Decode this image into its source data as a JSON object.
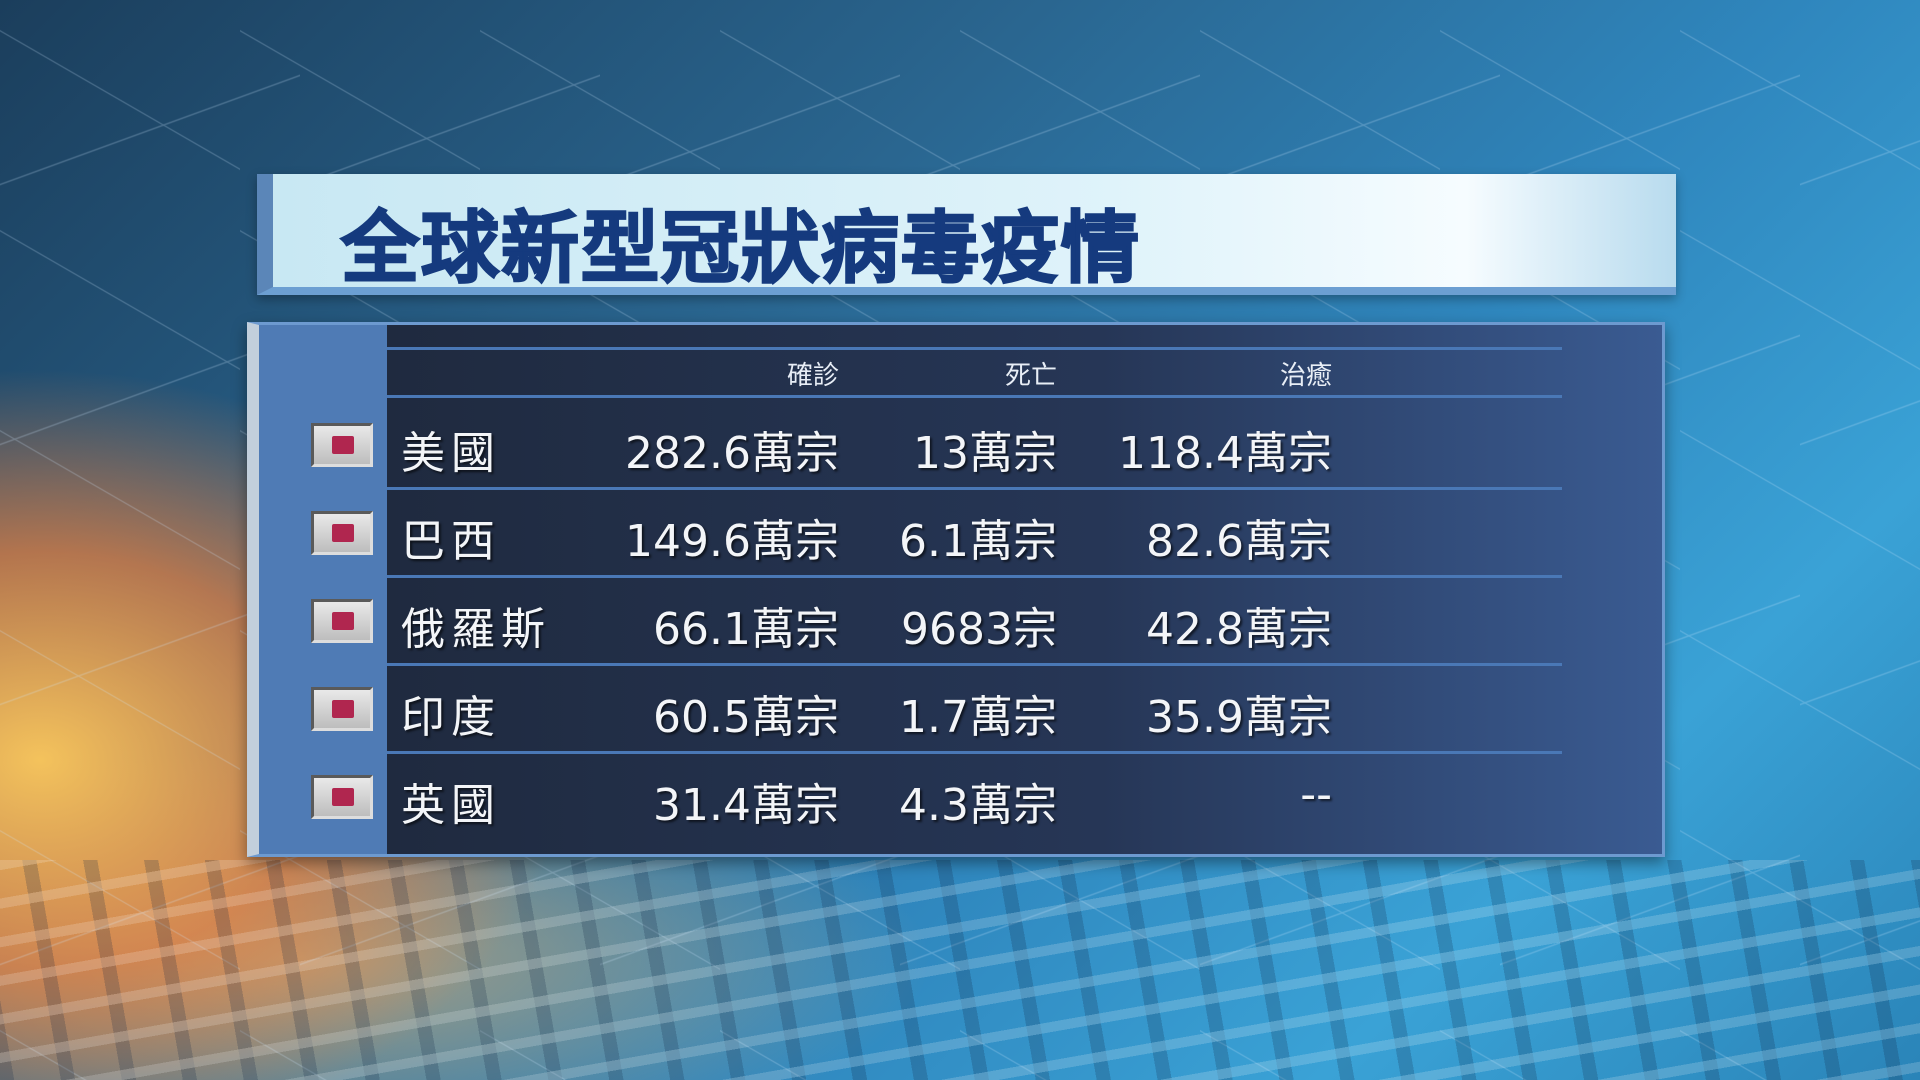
{
  "title": "全球新型冠狀病毒疫情",
  "headers": {
    "confirmed": "確診",
    "deaths": "死亡",
    "recovered": "治癒"
  },
  "rows": [
    {
      "country": "美國",
      "confirmed": "282.6萬宗",
      "deaths": "13萬宗",
      "recovered": "118.4萬宗"
    },
    {
      "country": "巴西",
      "confirmed": "149.6萬宗",
      "deaths": "6.1萬宗",
      "recovered": "82.6萬宗"
    },
    {
      "country": "俄羅斯",
      "confirmed": "66.1萬宗",
      "deaths": "9683宗",
      "recovered": "42.8萬宗"
    },
    {
      "country": "印度",
      "confirmed": "60.5萬宗",
      "deaths": "1.7萬宗",
      "recovered": "35.9萬宗"
    },
    {
      "country": "英國",
      "confirmed": "31.4萬宗",
      "deaths": "4.3萬宗",
      "recovered": "--"
    }
  ],
  "colors": {
    "title": "#153a7e",
    "flag_marker": "#b0264f"
  }
}
